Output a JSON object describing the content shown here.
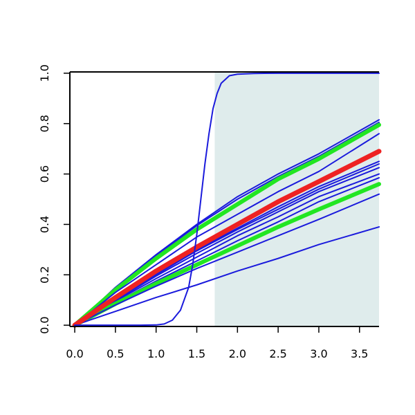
{
  "chart_data": {
    "type": "line",
    "title": "",
    "xlabel": "",
    "ylabel": "",
    "xlim": [
      -0.06,
      3.74
    ],
    "ylim": [
      -0.005,
      1.005
    ],
    "x_ticks": [
      "0.0",
      "0.5",
      "1.0",
      "1.5",
      "2.0",
      "2.5",
      "3.0",
      "3.5"
    ],
    "y_ticks": [
      "0.0",
      "0.2",
      "0.4",
      "0.6",
      "0.8",
      "1.0"
    ],
    "shaded_region": {
      "x_from": 1.72,
      "x_to": 3.74,
      "color": "#dfecec"
    },
    "grid": false,
    "legend": "none",
    "colors": {
      "blue": "#1a1adc",
      "green": "#22e622",
      "red": "#ee2222",
      "axis": "#000000"
    },
    "series": [
      {
        "color": "blue",
        "width": 2,
        "x": [
          0,
          0.5,
          1,
          1.5,
          2,
          2.5,
          3,
          3.74
        ],
        "y": [
          0,
          0.15,
          0.28,
          0.4,
          0.51,
          0.6,
          0.68,
          0.815
        ]
      },
      {
        "color": "blue",
        "width": 2,
        "x": [
          0,
          0.5,
          1,
          1.5,
          2,
          2.5,
          3,
          3.74
        ],
        "y": [
          0,
          0.145,
          0.275,
          0.395,
          0.5,
          0.59,
          0.67,
          0.805
        ]
      },
      {
        "color": "green",
        "width": 6,
        "x": [
          0,
          0.5,
          1,
          1.5,
          2,
          2.5,
          3,
          3.74
        ],
        "y": [
          0,
          0.14,
          0.265,
          0.38,
          0.48,
          0.58,
          0.66,
          0.795
        ]
      },
      {
        "color": "blue",
        "width": 2,
        "x": [
          0,
          0.5,
          1,
          1.5,
          2,
          2.5,
          3,
          3.74
        ],
        "y": [
          0,
          0.13,
          0.24,
          0.35,
          0.44,
          0.53,
          0.61,
          0.76
        ]
      },
      {
        "color": "blue",
        "width": 2,
        "x": [
          0,
          0.5,
          1,
          1.5,
          2,
          2.5,
          3,
          3.74
        ],
        "y": [
          0,
          0.105,
          0.205,
          0.3,
          0.385,
          0.47,
          0.55,
          0.65
        ]
      },
      {
        "color": "blue",
        "width": 2,
        "x": [
          0,
          0.5,
          1,
          1.5,
          2,
          2.5,
          3,
          3.74
        ],
        "y": [
          0,
          0.102,
          0.2,
          0.295,
          0.38,
          0.46,
          0.54,
          0.64
        ]
      },
      {
        "color": "blue",
        "width": 2,
        "x": [
          0,
          0.5,
          1,
          1.5,
          2,
          2.5,
          3,
          3.74
        ],
        "y": [
          0,
          0.098,
          0.195,
          0.285,
          0.37,
          0.45,
          0.53,
          0.625
        ]
      },
      {
        "color": "blue",
        "width": 2,
        "x": [
          0,
          0.5,
          1,
          1.5,
          2,
          2.5,
          3,
          3.74
        ],
        "y": [
          0,
          0.095,
          0.185,
          0.27,
          0.355,
          0.43,
          0.51,
          0.6
        ]
      },
      {
        "color": "blue",
        "width": 2,
        "x": [
          0,
          0.5,
          1,
          1.5,
          2,
          2.5,
          3,
          3.74
        ],
        "y": [
          0,
          0.09,
          0.175,
          0.255,
          0.335,
          0.41,
          0.49,
          0.585
        ]
      },
      {
        "color": "green",
        "width": 6,
        "x": [
          0,
          0.5,
          1,
          1.5,
          2,
          2.5,
          3,
          3.74
        ],
        "y": [
          0,
          0.085,
          0.165,
          0.24,
          0.315,
          0.39,
          0.46,
          0.56
        ]
      },
      {
        "color": "blue",
        "width": 2,
        "x": [
          0,
          0.5,
          1,
          1.5,
          2,
          2.5,
          3,
          3.74
        ],
        "y": [
          0,
          0.08,
          0.155,
          0.225,
          0.29,
          0.355,
          0.42,
          0.52
        ]
      },
      {
        "color": "blue",
        "width": 2,
        "x": [
          0,
          0.5,
          1,
          1.5,
          2,
          2.5,
          3,
          3.74
        ],
        "y": [
          0,
          0.055,
          0.11,
          0.16,
          0.215,
          0.265,
          0.32,
          0.39
        ]
      },
      {
        "color": "red",
        "width": 7,
        "x": [
          0,
          0.5,
          1,
          1.5,
          2,
          2.5,
          3,
          3.74
        ],
        "y": [
          0,
          0.11,
          0.215,
          0.31,
          0.4,
          0.49,
          0.57,
          0.69
        ]
      },
      {
        "color": "blue",
        "width": 2,
        "x": [
          0,
          0.8,
          1.0,
          1.1,
          1.2,
          1.3,
          1.4,
          1.45,
          1.5,
          1.55,
          1.6,
          1.65,
          1.7,
          1.75,
          1.8,
          1.9,
          2.0,
          2.2,
          2.5,
          3.0,
          3.74
        ],
        "y": [
          0,
          0,
          0.001,
          0.005,
          0.02,
          0.06,
          0.15,
          0.24,
          0.36,
          0.5,
          0.64,
          0.76,
          0.86,
          0.92,
          0.96,
          0.99,
          0.996,
          0.999,
          1.0,
          1.0,
          1.0
        ]
      }
    ]
  }
}
